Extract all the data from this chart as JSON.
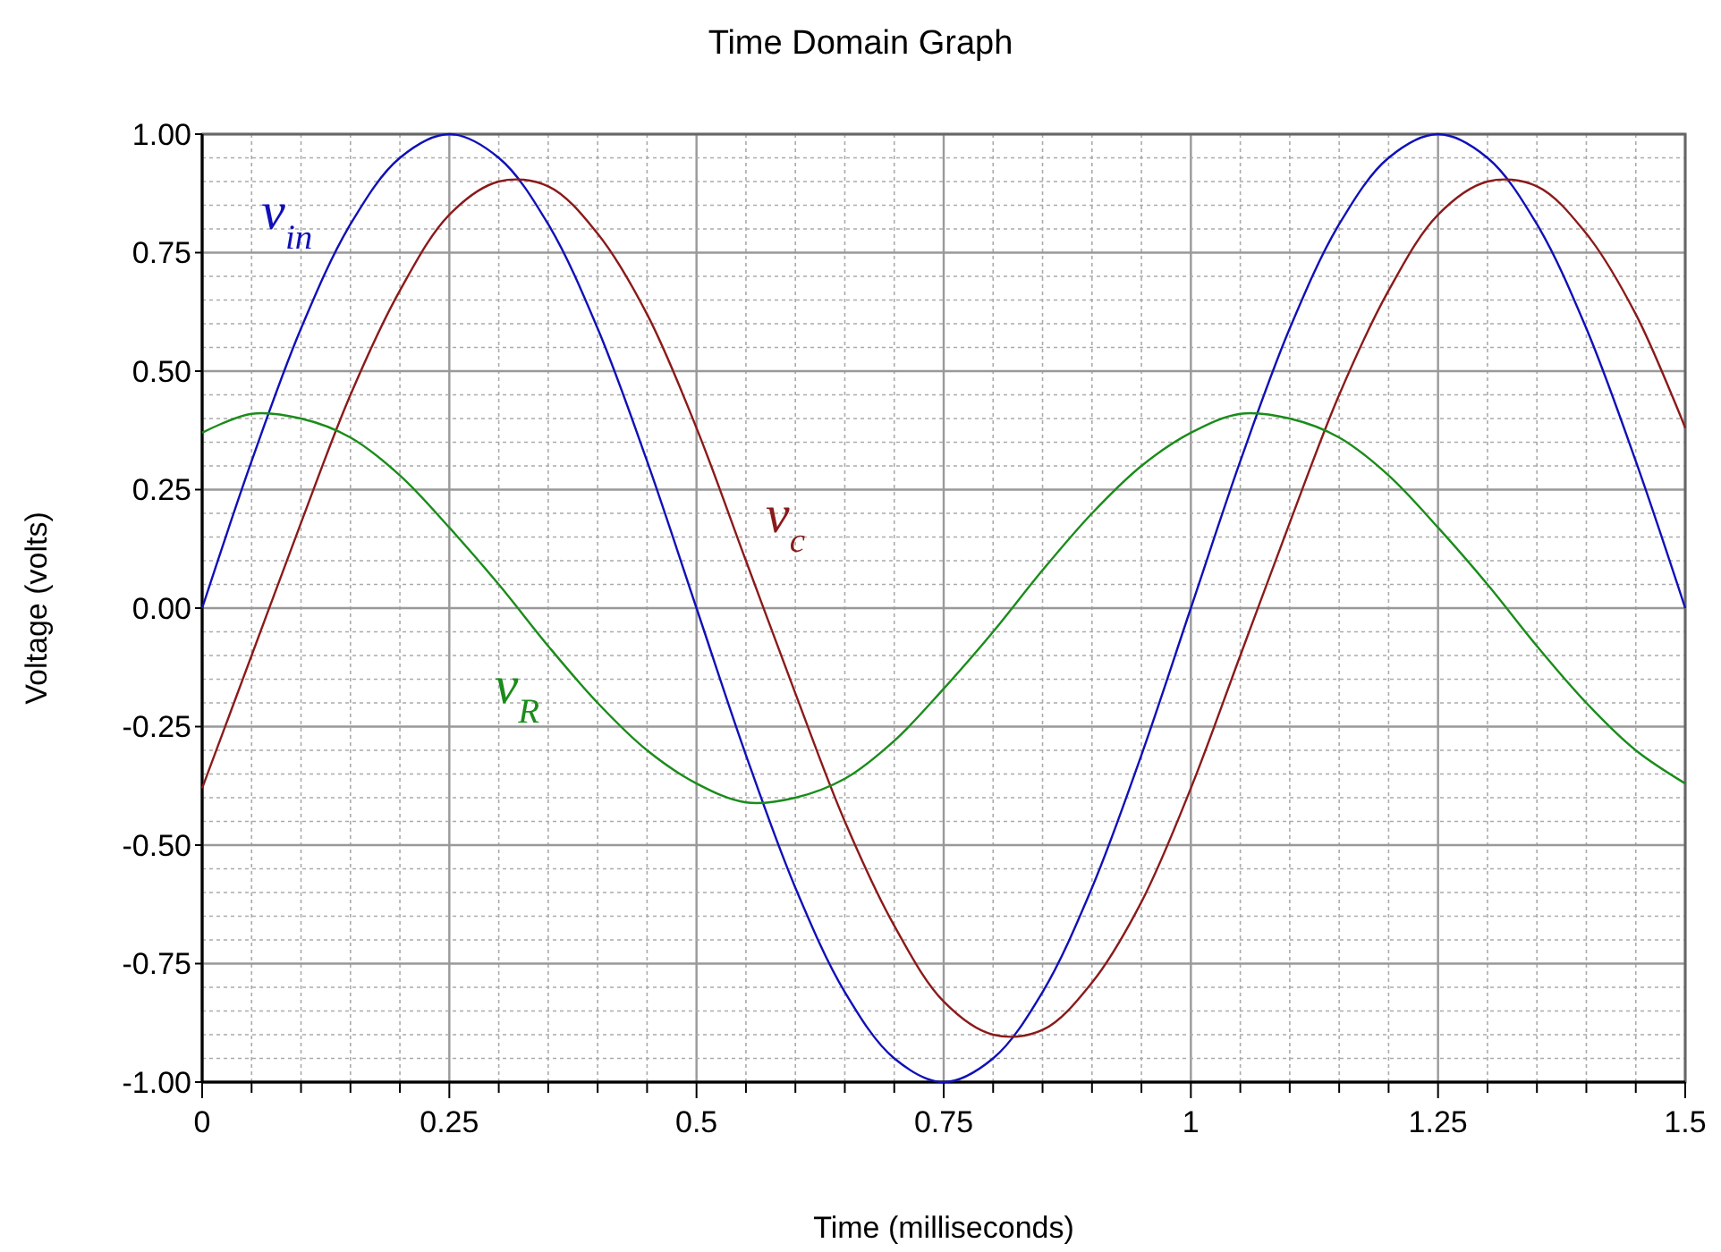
{
  "chart_data": {
    "type": "line",
    "title": "Time Domain Graph",
    "xlabel": "Time (milliseconds)",
    "ylabel": "Voltage (volts)",
    "x": [
      0,
      0.05,
      0.1,
      0.15,
      0.2,
      0.25,
      0.3,
      0.35,
      0.4,
      0.45,
      0.5,
      0.55,
      0.6,
      0.65,
      0.7,
      0.75,
      0.8,
      0.85,
      0.9,
      0.95,
      1,
      1.05,
      1.1,
      1.15,
      1.2,
      1.25,
      1.3,
      1.35,
      1.4,
      1.45,
      1.5
    ],
    "series": [
      {
        "name": "v$_{in}$",
        "color": "#1010b8",
        "values": [
          0,
          0.31,
          0.59,
          0.81,
          0.95,
          1,
          0.95,
          0.81,
          0.59,
          0.31,
          0,
          -0.31,
          -0.59,
          -0.81,
          -0.95,
          -1,
          -0.95,
          -0.81,
          -0.59,
          -0.31,
          0,
          0.31,
          0.59,
          0.81,
          0.95,
          1,
          0.95,
          0.81,
          0.59,
          0.31,
          0
        ]
      },
      {
        "name": "v$_{c}$",
        "color": "#8b1a1a",
        "values": [
          -0.38,
          -0.1,
          0.18,
          0.45,
          0.67,
          0.83,
          0.9,
          0.89,
          0.79,
          0.62,
          0.38,
          0.1,
          -0.18,
          -0.45,
          -0.67,
          -0.83,
          -0.9,
          -0.89,
          -0.79,
          -0.62,
          -0.38,
          -0.1,
          0.18,
          0.45,
          0.67,
          0.83,
          0.9,
          0.89,
          0.79,
          0.62,
          0.38
        ]
      },
      {
        "name": "v$_{R}$",
        "color": "#1a8c1a",
        "values": [
          0.37,
          0.41,
          0.4,
          0.36,
          0.28,
          0.17,
          0.05,
          -0.08,
          -0.2,
          -0.3,
          -0.37,
          -0.41,
          -0.4,
          -0.36,
          -0.28,
          -0.17,
          -0.05,
          0.08,
          0.2,
          0.3,
          0.37,
          0.41,
          0.4,
          0.36,
          0.28,
          0.17,
          0.05,
          -0.08,
          -0.2,
          -0.3,
          -0.37
        ]
      }
    ],
    "xlim": [
      0,
      1.5
    ],
    "ylim": [
      -1,
      1
    ],
    "xticks": [
      0,
      {
        "value": 0.05,
        "label": null
      },
      {
        "value": 0.1,
        "label": null
      },
      {
        "value": 0.15,
        "label": null
      },
      {
        "value": 0.2,
        "label": null
      },
      0.25,
      {
        "value": 0.3,
        "label": null
      },
      {
        "value": 0.35,
        "label": null
      },
      {
        "value": 0.4,
        "label": null
      },
      {
        "value": 0.45,
        "label": null
      },
      0.5,
      {
        "value": 0.55,
        "label": null
      },
      {
        "value": 0.6,
        "label": null
      },
      {
        "value": 0.65,
        "label": null
      },
      {
        "value": 0.7,
        "label": null
      },
      0.75,
      {
        "value": 0.8,
        "label": null
      },
      {
        "value": 0.85,
        "label": null
      },
      {
        "value": 0.9,
        "label": null
      },
      {
        "value": 0.95,
        "label": null
      },
      1,
      {
        "value": 1.05,
        "label": null
      },
      {
        "value": 1.1,
        "label": null
      },
      {
        "value": 1.15,
        "label": null
      },
      {
        "value": 1.2,
        "label": null
      },
      1.25,
      {
        "value": 1.3,
        "label": null
      },
      {
        "value": 1.35,
        "label": null
      },
      {
        "value": 1.4,
        "label": null
      },
      {
        "value": 1.45,
        "label": null
      },
      1.5
    ],
    "yticks": [
      {
        "value": -1,
        "label": "-1.00"
      },
      {
        "value": -0.95,
        "label": null
      },
      {
        "value": -0.9,
        "label": null
      },
      {
        "value": -0.85,
        "label": null
      },
      {
        "value": -0.8,
        "label": null
      },
      {
        "value": -0.75,
        "label": "-0.75"
      },
      {
        "value": -0.7,
        "label": null
      },
      {
        "value": -0.65,
        "label": null
      },
      {
        "value": -0.6,
        "label": null
      },
      {
        "value": -0.55,
        "label": null
      },
      {
        "value": -0.5,
        "label": "-0.50"
      },
      {
        "value": -0.45,
        "label": null
      },
      {
        "value": -0.4,
        "label": null
      },
      {
        "value": -0.35,
        "label": null
      },
      {
        "value": -0.3,
        "label": null
      },
      {
        "value": -0.25,
        "label": "-0.25"
      },
      {
        "value": -0.2,
        "label": null
      },
      {
        "value": -0.15,
        "label": null
      },
      {
        "value": -0.1,
        "label": null
      },
      {
        "value": -0.05,
        "label": null
      },
      {
        "value": 0,
        "label": "0.00"
      },
      {
        "value": 0.05,
        "label": null
      },
      {
        "value": 0.1,
        "label": null
      },
      {
        "value": 0.15,
        "label": null
      },
      {
        "value": 0.2,
        "label": null
      },
      {
        "value": 0.25,
        "label": "0.25"
      },
      {
        "value": 0.3,
        "label": null
      },
      {
        "value": 0.35,
        "label": null
      },
      {
        "value": 0.4,
        "label": null
      },
      {
        "value": 0.45,
        "label": null
      },
      {
        "value": 0.5,
        "label": "0.50"
      },
      {
        "value": 0.55,
        "label": null
      },
      {
        "value": 0.6,
        "label": null
      },
      {
        "value": 0.65,
        "label": null
      },
      {
        "value": 0.7,
        "label": null
      },
      {
        "value": 0.75,
        "label": "0.75"
      },
      {
        "value": 0.8,
        "label": null
      },
      {
        "value": 0.85,
        "label": null
      },
      {
        "value": 0.9,
        "label": null
      },
      {
        "value": 0.95,
        "label": null
      },
      {
        "value": 1,
        "label": "1.00"
      }
    ],
    "grid": true,
    "marker": "none",
    "line_style": "solid"
  }
}
